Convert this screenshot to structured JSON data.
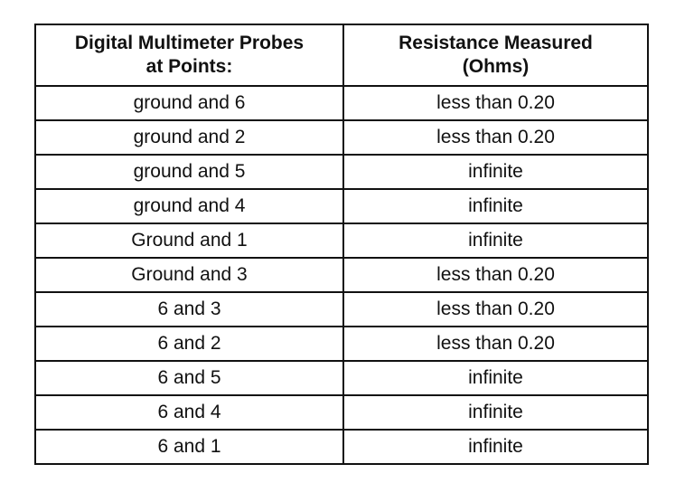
{
  "table": {
    "headers": [
      [
        "Digital Multimeter Probes",
        "at Points:"
      ],
      [
        "Resistance Measured",
        "(Ohms)"
      ]
    ],
    "rows": [
      [
        "ground and 6",
        "less than 0.20"
      ],
      [
        "ground and 2",
        "less than 0.20"
      ],
      [
        "ground and 5",
        "infinite"
      ],
      [
        "ground and 4",
        "infinite"
      ],
      [
        "Ground and 1",
        "infinite"
      ],
      [
        "Ground and 3",
        "less than 0.20"
      ],
      [
        "6 and 3",
        "less than 0.20"
      ],
      [
        "6 and 2",
        "less than 0.20"
      ],
      [
        "6 and 5",
        "infinite"
      ],
      [
        "6 and 4",
        "infinite"
      ],
      [
        "6 and 1",
        "infinite"
      ]
    ]
  }
}
